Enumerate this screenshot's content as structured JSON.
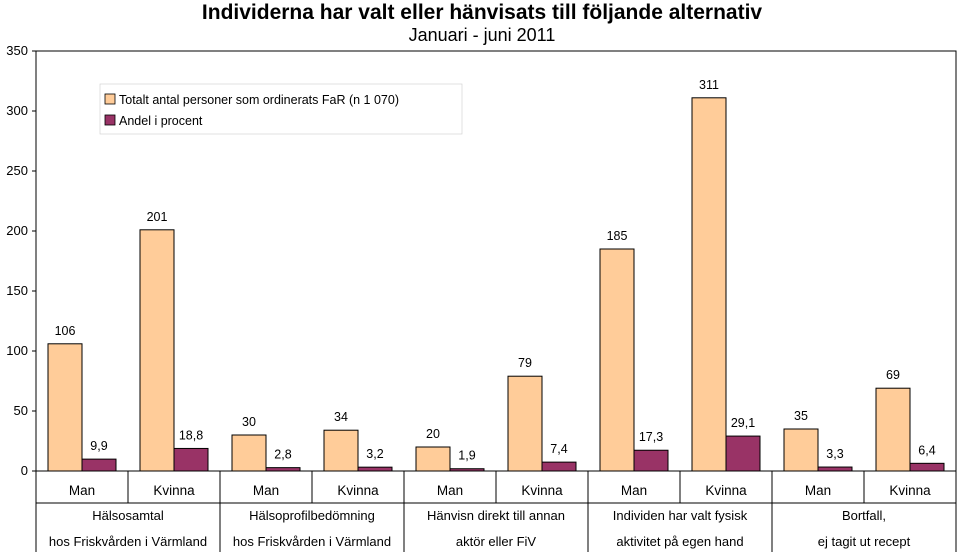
{
  "chart_data": {
    "type": "bar",
    "title": "Individerna har valt eller hänvisats till följande alternativ",
    "subtitle": "Januari - juni 2011",
    "ylim": [
      0,
      350
    ],
    "yticks": [
      "0",
      "50",
      "100",
      "150",
      "200",
      "250",
      "300",
      "350"
    ],
    "categories": [
      "Man",
      "Kvinna",
      "Man",
      "Kvinna",
      "Man",
      "Kvinna",
      "Man",
      "Kvinna",
      "Man",
      "Kvinna"
    ],
    "groups": [
      {
        "line1": "Hälsosamtal",
        "line2": "hos Friskvården i Värmland"
      },
      {
        "line1": "Hälsoprofilbedömning",
        "line2": "hos Friskvården i Värmland"
      },
      {
        "line1": "Hänvisn direkt till annan",
        "line2": "aktör eller FiV"
      },
      {
        "line1": "Individen har valt fysisk",
        "line2": "aktivitet på egen hand"
      },
      {
        "line1": "Bortfall,",
        "line2": "ej tagit ut recept"
      }
    ],
    "series": [
      {
        "name": "Totalt antal personer som ordinerats FaR (n 1 070)",
        "color": "#FFCC99",
        "values": [
          106,
          201,
          30,
          34,
          20,
          79,
          185,
          311,
          35,
          69
        ],
        "labels": [
          "106",
          "201",
          "30",
          "34",
          "20",
          "79",
          "185",
          "311",
          "35",
          "69"
        ]
      },
      {
        "name": "Andel i procent",
        "color": "#993366",
        "values": [
          9.9,
          18.8,
          2.8,
          3.2,
          1.9,
          7.4,
          17.3,
          29.1,
          3.3,
          6.4
        ],
        "labels": [
          "9,9",
          "18,8",
          "2,8",
          "3,2",
          "1,9",
          "7,4",
          "17,3",
          "29,1",
          "3,3",
          "6,4"
        ]
      }
    ],
    "legend_position": "top-left",
    "grid": false
  }
}
